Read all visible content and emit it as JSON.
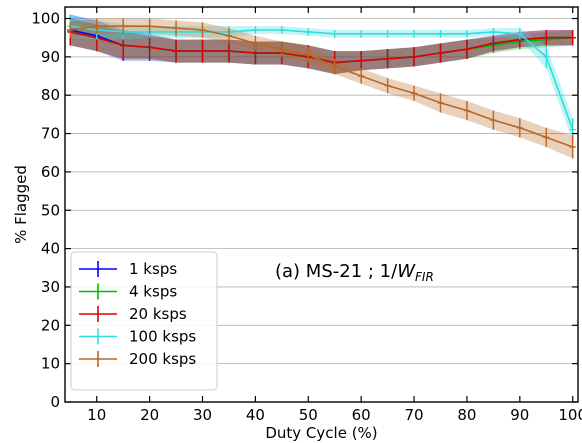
{
  "chart_data": {
    "type": "line",
    "xlabel": "Duty Cycle (%)",
    "ylabel": "% Flagged",
    "xlim": [
      4,
      101
    ],
    "ylim": [
      0,
      103
    ],
    "xticks": [
      10,
      20,
      30,
      40,
      50,
      60,
      70,
      80,
      90,
      100
    ],
    "yticks": [
      0,
      10,
      20,
      30,
      40,
      50,
      60,
      70,
      80,
      90,
      100
    ],
    "grid": "horizontal",
    "legend_position": "lower-left",
    "annotation": {
      "prefix": "(a) MS-21 ; 1/",
      "var": "W",
      "sub": "FIR"
    },
    "x": [
      5,
      10,
      15,
      20,
      25,
      30,
      35,
      40,
      45,
      50,
      55,
      60,
      65,
      70,
      75,
      80,
      85,
      90,
      95,
      100
    ],
    "series": [
      {
        "name": "1 ksps",
        "color": "#0000ff",
        "values": [
          97,
          95.5,
          93,
          92.5,
          91.5,
          91.5,
          91.5,
          91,
          91,
          90,
          88.5,
          89,
          89.5,
          90,
          91,
          92,
          93.5,
          94.5,
          95,
          95
        ],
        "errors": [
          4,
          4,
          4,
          3.5,
          3,
          3,
          3,
          3,
          3,
          3,
          3,
          2.5,
          2.5,
          2.5,
          2.5,
          2.5,
          2,
          2,
          2,
          2
        ]
      },
      {
        "name": "4 ksps",
        "color": "#00bb00",
        "values": [
          96.5,
          95,
          93,
          92.5,
          91.5,
          91.5,
          91.5,
          91,
          91,
          90,
          88.5,
          89,
          89.5,
          90,
          91,
          92,
          93,
          94,
          94.5,
          95
        ],
        "errors": [
          3.5,
          3.5,
          3.5,
          3,
          3,
          3,
          3,
          3,
          3,
          3,
          3,
          2.5,
          2.5,
          2.5,
          2.5,
          2.5,
          2,
          2,
          2,
          2
        ]
      },
      {
        "name": "20 ksps",
        "color": "#dd0000",
        "values": [
          96.5,
          95,
          93,
          92.5,
          91.5,
          91.5,
          91.5,
          91,
          91,
          90,
          88.5,
          89,
          89.5,
          90,
          91,
          92,
          93.5,
          94.5,
          95,
          95
        ],
        "errors": [
          3.5,
          3.5,
          3.5,
          3,
          3,
          3,
          3,
          3,
          3,
          3,
          3,
          2.5,
          2.5,
          2.5,
          2.5,
          2.5,
          2,
          2,
          2,
          2
        ]
      },
      {
        "name": "100 ksps",
        "color": "#33dddd",
        "values": [
          98,
          97,
          96.5,
          96.5,
          96.5,
          96.5,
          96.5,
          97,
          97,
          96.5,
          96,
          96,
          96,
          96,
          96,
          96,
          96.5,
          96,
          90,
          71
        ],
        "errors": [
          3,
          2.5,
          2,
          1.5,
          1.5,
          1.5,
          1.5,
          1,
          1,
          1,
          1,
          1,
          1,
          1,
          1,
          1,
          1,
          1.5,
          3,
          3
        ]
      },
      {
        "name": "200 ksps",
        "color": "#bb6622",
        "values": [
          97,
          98,
          98,
          98,
          97.5,
          97,
          95.5,
          93.5,
          92,
          90.5,
          87.5,
          85,
          82.5,
          80.5,
          78,
          76,
          73.5,
          71.5,
          69,
          66.5
        ],
        "errors": [
          2,
          2,
          2,
          2,
          2,
          2,
          2,
          2,
          2,
          2,
          2,
          2,
          2,
          2,
          2.5,
          2.5,
          2.5,
          2.5,
          2.5,
          3
        ]
      }
    ]
  }
}
